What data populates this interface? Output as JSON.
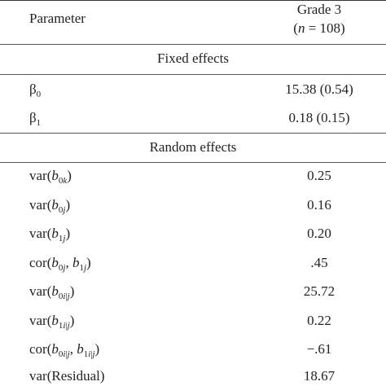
{
  "header": {
    "param_label": "Parameter",
    "grade_label": "Grade 3",
    "n_var": "n",
    "n_rest": " = 108)",
    "n_open": "("
  },
  "fixed": {
    "title": "Fixed effects",
    "rows": [
      {
        "sym": "β",
        "sub": "0",
        "value": "15.38 (0.54)"
      },
      {
        "sym": "β",
        "sub": "1",
        "value": "0.18 (0.15)"
      }
    ]
  },
  "random": {
    "title": "Random effects",
    "rows": [
      {
        "value": "0.25"
      },
      {
        "value": "0.16"
      },
      {
        "value": "0.20"
      },
      {
        "value": ".45"
      },
      {
        "value": "25.72"
      },
      {
        "value": "0.22"
      },
      {
        "value": "−.61"
      },
      {
        "value": "18.67"
      }
    ]
  }
}
